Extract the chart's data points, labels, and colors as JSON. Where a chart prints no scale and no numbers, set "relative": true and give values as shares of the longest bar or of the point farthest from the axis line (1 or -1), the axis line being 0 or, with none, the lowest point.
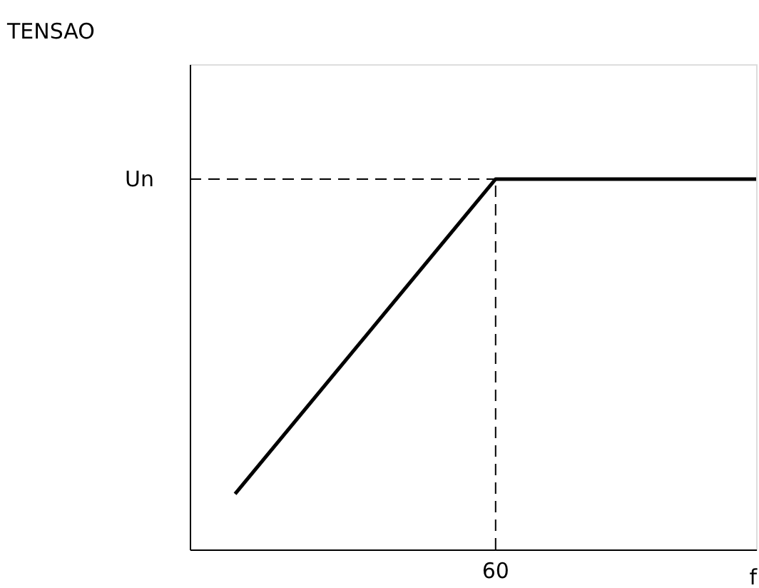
{
  "chart_data": {
    "type": "line",
    "relative": true,
    "xlabel": "f",
    "annotations": [
      "TENSAO"
    ],
    "categories": [
      null,
      null,
      null,
      null,
      null,
      null,
      null,
      null,
      null,
      null,
      null
    ],
    "values": [
      0.15,
      0.32,
      0.49,
      0.66,
      0.83,
      1,
      1,
      1,
      1,
      1,
      1
    ],
    "color": "#000000",
    "ref_lines": [
      {
        "axis": "y",
        "value": 1,
        "label": "Un",
        "line_style": "dashed"
      },
      {
        "axis": "x",
        "label": "60",
        "line_style": "dashed"
      }
    ],
    "grid": false
  }
}
